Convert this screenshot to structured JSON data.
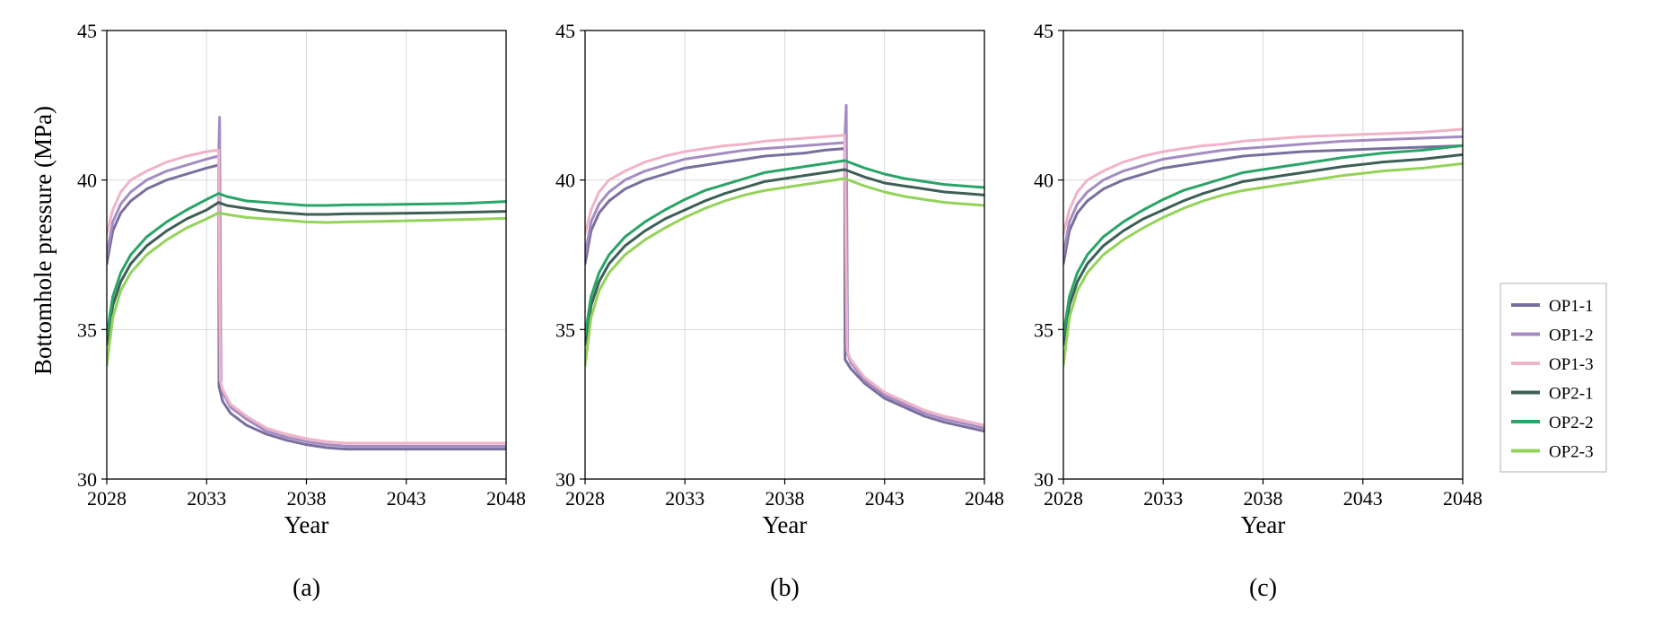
{
  "ylabel": "Bottomhole pressure (MPa)",
  "series_styles": [
    {
      "name": "OP1-1",
      "color": "#7a6e9e"
    },
    {
      "name": "OP1-2",
      "color": "#a48cc2"
    },
    {
      "name": "OP1-3",
      "color": "#f0b3c8"
    },
    {
      "name": "OP2-1",
      "color": "#3d5f57"
    },
    {
      "name": "OP2-2",
      "color": "#2aa468"
    },
    {
      "name": "OP2-3",
      "color": "#93d35a"
    }
  ],
  "chart_data": [
    {
      "type": "line",
      "panel_label": "(a)",
      "xlabel": "Year",
      "ylabel": "Bottomhole pressure (MPa)",
      "xlim": [
        2028,
        2048
      ],
      "ylim": [
        30,
        45
      ],
      "xticks": [
        "2028",
        "2033",
        "2038",
        "2043",
        "2048"
      ],
      "yticks": [
        "30",
        "35",
        "40",
        "45"
      ],
      "grid": true,
      "series": [
        {
          "name": "OP1-1",
          "x": [
            2028,
            2028.3,
            2028.7,
            2029.2,
            2030,
            2031,
            2032,
            2033,
            2033.6,
            2033.62,
            2033.8,
            2034.2,
            2035,
            2036,
            2037,
            2038,
            2039,
            2040,
            2042,
            2044,
            2046,
            2048
          ],
          "y": [
            37.2,
            38.3,
            38.9,
            39.3,
            39.7,
            40.0,
            40.2,
            40.4,
            40.5,
            33.1,
            32.6,
            32.2,
            31.8,
            31.5,
            31.3,
            31.15,
            31.05,
            31.0,
            31.0,
            31.0,
            31.0,
            31.0
          ]
        },
        {
          "name": "OP1-2",
          "x": [
            2028,
            2028.3,
            2028.7,
            2029.2,
            2030,
            2031,
            2032,
            2033,
            2033.6,
            2033.65,
            2033.72,
            2033.8,
            2034.2,
            2035,
            2036,
            2037,
            2038,
            2039,
            2040,
            2042,
            2044,
            2046,
            2048
          ],
          "y": [
            37.5,
            38.6,
            39.2,
            39.6,
            40.0,
            40.3,
            40.5,
            40.7,
            40.8,
            42.1,
            33.2,
            32.9,
            32.4,
            32.0,
            31.6,
            31.4,
            31.25,
            31.15,
            31.1,
            31.1,
            31.1,
            31.1,
            31.1
          ]
        },
        {
          "name": "OP1-3",
          "x": [
            2028,
            2028.3,
            2028.7,
            2029.2,
            2030,
            2031,
            2032,
            2033,
            2033.6,
            2033.68,
            2033.8,
            2034.2,
            2035,
            2036,
            2037,
            2038,
            2039,
            2040,
            2042,
            2044,
            2046,
            2048
          ],
          "y": [
            38.2,
            39.0,
            39.6,
            40.0,
            40.3,
            40.6,
            40.8,
            40.95,
            41.0,
            33.3,
            33.0,
            32.5,
            32.1,
            31.7,
            31.5,
            31.35,
            31.25,
            31.2,
            31.2,
            31.2,
            31.2,
            31.2
          ]
        },
        {
          "name": "OP2-1",
          "x": [
            2028,
            2028.3,
            2028.7,
            2029.2,
            2030,
            2031,
            2032,
            2033,
            2033.6,
            2034,
            2035,
            2036,
            2037,
            2038,
            2039,
            2040,
            2042,
            2044,
            2046,
            2048
          ],
          "y": [
            34.5,
            35.8,
            36.6,
            37.2,
            37.8,
            38.3,
            38.7,
            39.0,
            39.25,
            39.15,
            39.05,
            38.95,
            38.9,
            38.85,
            38.85,
            38.87,
            38.88,
            38.9,
            38.92,
            38.95
          ]
        },
        {
          "name": "OP2-2",
          "x": [
            2028,
            2028.3,
            2028.7,
            2029.2,
            2030,
            2031,
            2032,
            2033,
            2033.6,
            2034,
            2035,
            2036,
            2037,
            2038,
            2039,
            2040,
            2042,
            2044,
            2046,
            2048
          ],
          "y": [
            34.8,
            36.1,
            36.9,
            37.5,
            38.1,
            38.6,
            39.0,
            39.35,
            39.55,
            39.45,
            39.3,
            39.25,
            39.2,
            39.15,
            39.15,
            39.17,
            39.18,
            39.2,
            39.22,
            39.28
          ]
        },
        {
          "name": "OP2-3",
          "x": [
            2028,
            2028.3,
            2028.7,
            2029.2,
            2030,
            2031,
            2032,
            2033,
            2033.6,
            2034,
            2035,
            2036,
            2037,
            2038,
            2039,
            2040,
            2042,
            2044,
            2046,
            2048
          ],
          "y": [
            33.8,
            35.4,
            36.3,
            36.9,
            37.5,
            38.0,
            38.4,
            38.7,
            38.9,
            38.85,
            38.75,
            38.7,
            38.65,
            38.6,
            38.58,
            38.6,
            38.62,
            38.65,
            38.68,
            38.72
          ]
        }
      ]
    },
    {
      "type": "line",
      "panel_label": "(b)",
      "xlabel": "Year",
      "ylabel": "",
      "xlim": [
        2028,
        2048
      ],
      "ylim": [
        30,
        45
      ],
      "xticks": [
        "2028",
        "2033",
        "2038",
        "2043",
        "2048"
      ],
      "yticks": [
        "30",
        "35",
        "40",
        "45"
      ],
      "grid": true,
      "series": [
        {
          "name": "OP1-1",
          "x": [
            2028,
            2028.3,
            2028.7,
            2029.2,
            2030,
            2031,
            2032,
            2033,
            2034,
            2035,
            2036,
            2037,
            2038,
            2039,
            2040,
            2041,
            2041.02,
            2041.3,
            2042,
            2043,
            2044,
            2045,
            2046,
            2047,
            2048
          ],
          "y": [
            37.2,
            38.3,
            38.9,
            39.3,
            39.7,
            40.0,
            40.2,
            40.4,
            40.5,
            40.6,
            40.7,
            40.8,
            40.85,
            40.9,
            41.0,
            41.05,
            34.0,
            33.7,
            33.2,
            32.7,
            32.4,
            32.1,
            31.9,
            31.75,
            31.6
          ]
        },
        {
          "name": "OP1-2",
          "x": [
            2028,
            2028.3,
            2028.7,
            2029.2,
            2030,
            2031,
            2032,
            2033,
            2034,
            2035,
            2036,
            2037,
            2038,
            2039,
            2040,
            2041,
            2041.08,
            2041.15,
            2041.3,
            2042,
            2043,
            2044,
            2045,
            2046,
            2047,
            2048
          ],
          "y": [
            37.5,
            38.6,
            39.2,
            39.6,
            40.0,
            40.3,
            40.5,
            40.7,
            40.8,
            40.9,
            41.0,
            41.05,
            41.1,
            41.15,
            41.2,
            41.25,
            42.5,
            34.2,
            33.9,
            33.3,
            32.8,
            32.5,
            32.2,
            32.0,
            31.85,
            31.7
          ]
        },
        {
          "name": "OP1-3",
          "x": [
            2028,
            2028.3,
            2028.7,
            2029.2,
            2030,
            2031,
            2032,
            2033,
            2034,
            2035,
            2036,
            2037,
            2038,
            2039,
            2040,
            2041,
            2041.12,
            2041.3,
            2042,
            2043,
            2044,
            2045,
            2046,
            2047,
            2048
          ],
          "y": [
            38.2,
            39.0,
            39.6,
            40.0,
            40.3,
            40.6,
            40.8,
            40.95,
            41.05,
            41.15,
            41.2,
            41.3,
            41.35,
            41.4,
            41.45,
            41.5,
            34.3,
            34.0,
            33.4,
            32.9,
            32.6,
            32.3,
            32.1,
            31.95,
            31.8
          ]
        },
        {
          "name": "OP2-1",
          "x": [
            2028,
            2028.3,
            2028.7,
            2029.2,
            2030,
            2031,
            2032,
            2033,
            2034,
            2035,
            2036,
            2037,
            2038,
            2039,
            2040,
            2041,
            2042,
            2043,
            2044,
            2045,
            2046,
            2047,
            2048
          ],
          "y": [
            34.5,
            35.8,
            36.6,
            37.2,
            37.8,
            38.3,
            38.7,
            39.0,
            39.3,
            39.55,
            39.75,
            39.95,
            40.05,
            40.15,
            40.25,
            40.35,
            40.1,
            39.9,
            39.8,
            39.7,
            39.6,
            39.55,
            39.5
          ]
        },
        {
          "name": "OP2-2",
          "x": [
            2028,
            2028.3,
            2028.7,
            2029.2,
            2030,
            2031,
            2032,
            2033,
            2034,
            2035,
            2036,
            2037,
            2038,
            2039,
            2040,
            2041,
            2042,
            2043,
            2044,
            2045,
            2046,
            2047,
            2048
          ],
          "y": [
            34.8,
            36.1,
            36.9,
            37.5,
            38.1,
            38.6,
            39.0,
            39.35,
            39.65,
            39.85,
            40.05,
            40.25,
            40.35,
            40.45,
            40.55,
            40.65,
            40.4,
            40.2,
            40.05,
            39.95,
            39.85,
            39.8,
            39.75
          ]
        },
        {
          "name": "OP2-3",
          "x": [
            2028,
            2028.3,
            2028.7,
            2029.2,
            2030,
            2031,
            2032,
            2033,
            2034,
            2035,
            2036,
            2037,
            2038,
            2039,
            2040,
            2041,
            2042,
            2043,
            2044,
            2045,
            2046,
            2047,
            2048
          ],
          "y": [
            33.8,
            35.4,
            36.3,
            36.9,
            37.5,
            38.0,
            38.4,
            38.75,
            39.05,
            39.3,
            39.5,
            39.65,
            39.75,
            39.85,
            39.95,
            40.05,
            39.8,
            39.6,
            39.45,
            39.35,
            39.25,
            39.2,
            39.15
          ]
        }
      ]
    },
    {
      "type": "line",
      "panel_label": "(c)",
      "xlabel": "Year",
      "ylabel": "",
      "xlim": [
        2028,
        2048
      ],
      "ylim": [
        30,
        45
      ],
      "xticks": [
        "2028",
        "2033",
        "2038",
        "2043",
        "2048"
      ],
      "yticks": [
        "30",
        "35",
        "40",
        "45"
      ],
      "grid": true,
      "series": [
        {
          "name": "OP1-1",
          "x": [
            2028,
            2028.3,
            2028.7,
            2029.2,
            2030,
            2031,
            2032,
            2033,
            2034,
            2035,
            2036,
            2037,
            2038,
            2039,
            2040,
            2042,
            2044,
            2046,
            2048
          ],
          "y": [
            37.2,
            38.3,
            38.9,
            39.3,
            39.7,
            40.0,
            40.2,
            40.4,
            40.5,
            40.6,
            40.7,
            40.8,
            40.85,
            40.9,
            40.95,
            41.0,
            41.05,
            41.1,
            41.15
          ]
        },
        {
          "name": "OP1-2",
          "x": [
            2028,
            2028.3,
            2028.7,
            2029.2,
            2030,
            2031,
            2032,
            2033,
            2034,
            2035,
            2036,
            2037,
            2038,
            2039,
            2040,
            2042,
            2044,
            2046,
            2048
          ],
          "y": [
            37.5,
            38.6,
            39.2,
            39.6,
            40.0,
            40.3,
            40.5,
            40.7,
            40.8,
            40.9,
            41.0,
            41.05,
            41.1,
            41.15,
            41.2,
            41.3,
            41.35,
            41.4,
            41.45
          ]
        },
        {
          "name": "OP1-3",
          "x": [
            2028,
            2028.3,
            2028.7,
            2029.2,
            2030,
            2031,
            2032,
            2033,
            2034,
            2035,
            2036,
            2037,
            2038,
            2039,
            2040,
            2042,
            2044,
            2046,
            2048
          ],
          "y": [
            38.2,
            39.0,
            39.6,
            40.0,
            40.3,
            40.6,
            40.8,
            40.95,
            41.05,
            41.15,
            41.2,
            41.3,
            41.35,
            41.4,
            41.45,
            41.5,
            41.55,
            41.6,
            41.7
          ]
        },
        {
          "name": "OP2-1",
          "x": [
            2028,
            2028.3,
            2028.7,
            2029.2,
            2030,
            2031,
            2032,
            2033,
            2034,
            2035,
            2036,
            2037,
            2038,
            2039,
            2040,
            2042,
            2044,
            2046,
            2048
          ],
          "y": [
            34.5,
            35.8,
            36.6,
            37.2,
            37.8,
            38.3,
            38.7,
            39.0,
            39.3,
            39.55,
            39.75,
            39.95,
            40.05,
            40.15,
            40.25,
            40.45,
            40.6,
            40.7,
            40.85
          ]
        },
        {
          "name": "OP2-2",
          "x": [
            2028,
            2028.3,
            2028.7,
            2029.2,
            2030,
            2031,
            2032,
            2033,
            2034,
            2035,
            2036,
            2037,
            2038,
            2039,
            2040,
            2042,
            2044,
            2046,
            2048
          ],
          "y": [
            34.8,
            36.1,
            36.9,
            37.5,
            38.1,
            38.6,
            39.0,
            39.35,
            39.65,
            39.85,
            40.05,
            40.25,
            40.35,
            40.45,
            40.55,
            40.75,
            40.9,
            41.0,
            41.15
          ]
        },
        {
          "name": "OP2-3",
          "x": [
            2028,
            2028.3,
            2028.7,
            2029.2,
            2030,
            2031,
            2032,
            2033,
            2034,
            2035,
            2036,
            2037,
            2038,
            2039,
            2040,
            2042,
            2044,
            2046,
            2048
          ],
          "y": [
            33.8,
            35.4,
            36.3,
            36.9,
            37.5,
            38.0,
            38.4,
            38.75,
            39.05,
            39.3,
            39.5,
            39.65,
            39.75,
            39.85,
            39.95,
            40.15,
            40.3,
            40.4,
            40.55
          ]
        }
      ]
    }
  ],
  "legend": {
    "placement": "right",
    "entries": [
      "OP1-1",
      "OP1-2",
      "OP1-3",
      "OP2-1",
      "OP2-2",
      "OP2-3"
    ]
  }
}
